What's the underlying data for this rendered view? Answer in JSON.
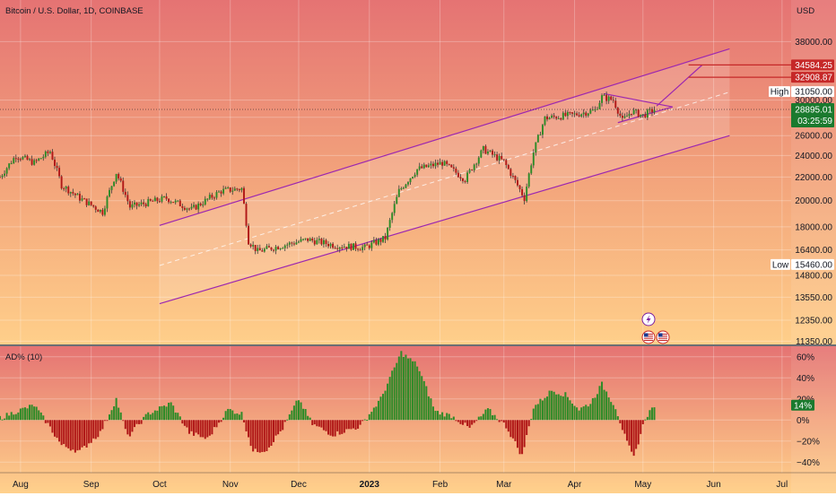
{
  "header": {
    "symbol_title": "Bitcoin / U.S. Dollar, 1D, COINBASE",
    "currency": "USD"
  },
  "colors": {
    "up": "#2e8b28",
    "down": "#b01818",
    "wick": "#3a3a3a",
    "channel": "#9c27b0",
    "target_line": "#c62828",
    "last_price_bg": "#1b7a2e",
    "bg_top": "#e57373",
    "bg_bottom": "#ffcc80"
  },
  "icons": {
    "flash": "lightning-icon",
    "flag1": "us-flag-icon",
    "flag2": "us-flag-icon"
  },
  "chart_data": [
    {
      "type": "candlestick",
      "title": "Bitcoin / U.S. Dollar, 1D, COINBASE",
      "x_axis": {
        "type": "date",
        "tick_labels": [
          "Aug",
          "Sep",
          "Oct",
          "Nov",
          "Dec",
          "2023",
          "Feb",
          "Mar",
          "Apr",
          "May",
          "Jun",
          "Jul"
        ],
        "tick_dates": [
          "2022-08-01",
          "2022-09-01",
          "2022-10-01",
          "2022-11-01",
          "2022-12-01",
          "2023-01-01",
          "2023-02-01",
          "2023-03-01",
          "2023-04-01",
          "2023-05-01",
          "2023-06-01",
          "2023-07-01"
        ],
        "bold_labels": [
          "2023"
        ],
        "range": [
          "2022-07-23",
          "2023-07-05"
        ]
      },
      "y_axis": {
        "label": "USD",
        "scale": "log",
        "range": [
          11200,
          41500
        ],
        "tick_values": [
          11350,
          12350,
          13550,
          14800,
          16400,
          18000,
          20000,
          22000,
          24000,
          26000,
          28000,
          30000,
          38000
        ],
        "tick_labels": [
          "11350.00",
          "12350.00",
          "13550.00",
          "14800.00",
          "16400.00",
          "18000.00",
          "20000.00",
          "22000.00",
          "24000.00",
          "26000.00",
          "28000.00",
          "30000.00",
          "38000.00"
        ]
      },
      "ohlc_anchors": [
        {
          "date": "2022-07-23",
          "price": 22000
        },
        {
          "date": "2022-07-30",
          "price": 24000
        },
        {
          "date": "2022-08-07",
          "price": 23300
        },
        {
          "date": "2022-08-14",
          "price": 24400
        },
        {
          "date": "2022-08-19",
          "price": 21300
        },
        {
          "date": "2022-08-27",
          "price": 20200
        },
        {
          "date": "2022-09-06",
          "price": 19100
        },
        {
          "date": "2022-09-12",
          "price": 22400
        },
        {
          "date": "2022-09-18",
          "price": 19500
        },
        {
          "date": "2022-10-04",
          "price": 20200
        },
        {
          "date": "2022-10-15",
          "price": 19300
        },
        {
          "date": "2022-10-28",
          "price": 20800
        },
        {
          "date": "2022-11-06",
          "price": 21000
        },
        {
          "date": "2022-11-09",
          "price": 17000
        },
        {
          "date": "2022-11-13",
          "price": 16300
        },
        {
          "date": "2022-12-05",
          "price": 17100
        },
        {
          "date": "2022-12-17",
          "price": 16700
        },
        {
          "date": "2022-12-30",
          "price": 16550
        },
        {
          "date": "2023-01-08",
          "price": 17200
        },
        {
          "date": "2023-01-14",
          "price": 20800
        },
        {
          "date": "2023-01-22",
          "price": 22700
        },
        {
          "date": "2023-02-02",
          "price": 23300
        },
        {
          "date": "2023-02-12",
          "price": 21800
        },
        {
          "date": "2023-02-20",
          "price": 24600
        },
        {
          "date": "2023-03-01",
          "price": 23400
        },
        {
          "date": "2023-03-10",
          "price": 20200
        },
        {
          "date": "2023-03-14",
          "price": 24300
        },
        {
          "date": "2023-03-19",
          "price": 27900
        },
        {
          "date": "2023-04-01",
          "price": 28300
        },
        {
          "date": "2023-04-10",
          "price": 28800
        },
        {
          "date": "2023-04-13",
          "price": 30400
        },
        {
          "date": "2023-04-18",
          "price": 30000
        },
        {
          "date": "2023-04-22",
          "price": 27600
        },
        {
          "date": "2023-04-26",
          "price": 28700
        },
        {
          "date": "2023-05-01",
          "price": 28200
        },
        {
          "date": "2023-05-06",
          "price": 28900
        }
      ],
      "annotations": {
        "last_price": {
          "value": 28895.01,
          "label": "28895.01",
          "countdown": "03:25:59"
        },
        "high": {
          "label": "High",
          "value": 31050.0,
          "value_label": "31050.00"
        },
        "low": {
          "label": "Low",
          "value": 15460.0,
          "value_label": "15460.00"
        },
        "targets": [
          {
            "value": 34584.25,
            "label": "34584.25"
          },
          {
            "value": 32908.87,
            "label": "32908.87"
          }
        ],
        "channel": {
          "upper": [
            {
              "date": "2022-10-01",
              "price": 18100
            },
            {
              "date": "2023-06-08",
              "price": 36900
            }
          ],
          "lower": [
            {
              "date": "2022-10-01",
              "price": 13200
            },
            {
              "date": "2023-06-08",
              "price": 26000
            }
          ],
          "mid": [
            {
              "date": "2022-10-01",
              "price": 15400
            },
            {
              "date": "2023-06-08",
              "price": 31000
            }
          ]
        },
        "triangle": {
          "upper": [
            {
              "date": "2023-04-14",
              "price": 30800
            },
            {
              "date": "2023-05-14",
              "price": 29200
            }
          ],
          "lower": [
            {
              "date": "2023-04-20",
              "price": 27400
            },
            {
              "date": "2023-05-14",
              "price": 29200
            }
          ],
          "projection": [
            {
              "date": "2023-05-07",
              "price": 29300
            },
            {
              "date": "2023-05-21",
              "price": 32908.87
            },
            {
              "date": "2023-05-27",
              "price": 34584.25
            }
          ]
        }
      },
      "series_name": ""
    },
    {
      "type": "histogram",
      "title": "AD% (10)",
      "y_axis": {
        "range": [
          -50,
          70
        ],
        "tick_values": [
          60,
          40,
          20,
          0,
          -20,
          -40
        ],
        "tick_labels": [
          "60%",
          "40%",
          "20%",
          "0%",
          "−20%",
          "−40%"
        ]
      },
      "last_value": {
        "value": 14,
        "label": "14%"
      },
      "anchors": [
        {
          "date": "2022-07-23",
          "value": 2
        },
        {
          "date": "2022-07-30",
          "value": 8
        },
        {
          "date": "2022-08-07",
          "value": 14
        },
        {
          "date": "2022-08-13",
          "value": -4
        },
        {
          "date": "2022-08-19",
          "value": -24
        },
        {
          "date": "2022-08-27",
          "value": -30
        },
        {
          "date": "2022-09-05",
          "value": -12
        },
        {
          "date": "2022-09-12",
          "value": 20
        },
        {
          "date": "2022-09-17",
          "value": -16
        },
        {
          "date": "2022-09-26",
          "value": 6
        },
        {
          "date": "2022-10-06",
          "value": 16
        },
        {
          "date": "2022-10-14",
          "value": -12
        },
        {
          "date": "2022-10-22",
          "value": -18
        },
        {
          "date": "2022-10-31",
          "value": 10
        },
        {
          "date": "2022-11-06",
          "value": 6
        },
        {
          "date": "2022-11-11",
          "value": -30
        },
        {
          "date": "2022-11-17",
          "value": -28
        },
        {
          "date": "2022-11-24",
          "value": -8
        },
        {
          "date": "2022-12-01",
          "value": 20
        },
        {
          "date": "2022-12-07",
          "value": -4
        },
        {
          "date": "2022-12-16",
          "value": -14
        },
        {
          "date": "2022-12-28",
          "value": -6
        },
        {
          "date": "2023-01-06",
          "value": 20
        },
        {
          "date": "2023-01-15",
          "value": 64
        },
        {
          "date": "2023-01-22",
          "value": 52
        },
        {
          "date": "2023-01-30",
          "value": 8
        },
        {
          "date": "2023-02-06",
          "value": 4
        },
        {
          "date": "2023-02-14",
          "value": -8
        },
        {
          "date": "2023-02-22",
          "value": 10
        },
        {
          "date": "2023-03-02",
          "value": -6
        },
        {
          "date": "2023-03-09",
          "value": -34
        },
        {
          "date": "2023-03-14",
          "value": 12
        },
        {
          "date": "2023-03-22",
          "value": 28
        },
        {
          "date": "2023-03-28",
          "value": 24
        },
        {
          "date": "2023-04-03",
          "value": 10
        },
        {
          "date": "2023-04-08",
          "value": 16
        },
        {
          "date": "2023-04-13",
          "value": 34
        },
        {
          "date": "2023-04-19",
          "value": 12
        },
        {
          "date": "2023-04-24",
          "value": -22
        },
        {
          "date": "2023-04-27",
          "value": -36
        },
        {
          "date": "2023-05-02",
          "value": 2
        },
        {
          "date": "2023-05-06",
          "value": 14
        }
      ]
    }
  ]
}
